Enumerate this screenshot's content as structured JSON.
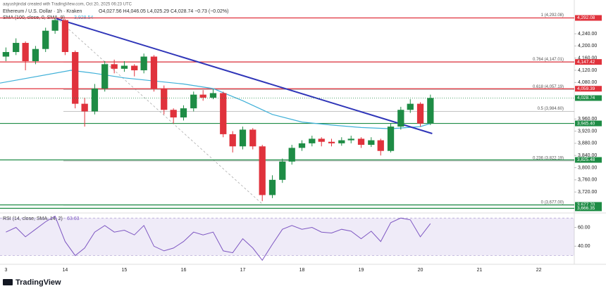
{
  "header": {
    "credit": "aayushjindal created with TradingView.com, Oct 20, 2025 06:23 UTC"
  },
  "brand": "TradingView",
  "chart_data": {
    "type": "candlestick",
    "title": "Ethereum / U.S. Dollar · 1h · Kraken",
    "ohlc_label": "O4,027.56 H4,046.05 L4,025.29 C4,028.74 −0.73 (−0.02%)",
    "x": [
      13,
      13.17,
      13.33,
      13.5,
      13.67,
      13.83,
      14,
      14.17,
      14.33,
      14.5,
      14.67,
      14.83,
      15,
      15.17,
      15.33,
      15.5,
      15.67,
      15.83,
      16,
      16.17,
      16.33,
      16.5,
      16.67,
      16.83,
      17,
      17.17,
      17.33,
      17.5,
      17.67,
      17.83,
      18,
      18.17,
      18.33,
      18.5,
      18.67,
      18.83,
      19,
      19.17,
      19.33,
      19.5,
      19.67,
      19.83,
      20,
      20.17
    ],
    "open": [
      4165,
      4180,
      4210,
      4150,
      4190,
      4250,
      4285,
      4180,
      4010,
      3985,
      4060,
      4140,
      4125,
      4135,
      4120,
      4165,
      4060,
      3990,
      3965,
      3995,
      4040,
      4030,
      4045,
      3910,
      3870,
      3925,
      3870,
      3710,
      3760,
      3820,
      3865,
      3880,
      3895,
      3885,
      3880,
      3890,
      3895,
      3875,
      3890,
      3855,
      3935,
      3990,
      4010,
      3945
    ],
    "high": [
      4195,
      4225,
      4215,
      4200,
      4260,
      4292,
      4288,
      4185,
      4030,
      4075,
      4150,
      4155,
      4150,
      4140,
      4175,
      4170,
      4070,
      3995,
      4005,
      4050,
      4055,
      4058,
      4050,
      3920,
      3935,
      3930,
      3875,
      3775,
      3830,
      3875,
      3890,
      3905,
      3900,
      3895,
      3900,
      3905,
      3900,
      3900,
      3895,
      3945,
      4000,
      4025,
      4015,
      4040
    ],
    "low": [
      4150,
      4170,
      4120,
      4140,
      4180,
      4240,
      4170,
      3995,
      3935,
      3975,
      4050,
      4110,
      4115,
      4100,
      4110,
      4050,
      3975,
      3945,
      3955,
      3985,
      4020,
      4025,
      3900,
      3850,
      3860,
      3860,
      3690,
      3700,
      3750,
      3810,
      3855,
      3870,
      3870,
      3870,
      3872,
      3880,
      3865,
      3868,
      3840,
      3850,
      3925,
      3980,
      3935,
      3940
    ],
    "close": [
      4180,
      4210,
      4150,
      4190,
      4250,
      4285,
      4180,
      4010,
      3985,
      4060,
      4140,
      4125,
      4135,
      4120,
      4165,
      4060,
      3990,
      3965,
      3995,
      4040,
      4030,
      4045,
      3910,
      3870,
      3925,
      3870,
      3710,
      3760,
      3820,
      3865,
      3880,
      3895,
      3885,
      3880,
      3890,
      3895,
      3875,
      3890,
      3855,
      3935,
      3990,
      4010,
      3945,
      4029
    ],
    "up_color": "#1e8c45",
    "down_color": "#e0323c",
    "xlim": [
      12.9,
      22.6
    ],
    "xticks": [
      {
        "value": 13,
        "label": "3"
      },
      14,
      15,
      16,
      17,
      18,
      19,
      20,
      21,
      22
    ],
    "ylim": [
      3658,
      4351
    ],
    "yticks": [
      {
        "value": 3720,
        "label": "3,720.00"
      },
      {
        "value": 3760,
        "label": "3,760.00"
      },
      {
        "value": 3800,
        "label": "3,800.00"
      },
      {
        "value": 3840,
        "label": "3,840.00"
      },
      {
        "value": 3880,
        "label": "3,880.00"
      },
      {
        "value": 3920,
        "label": "3,920.00"
      },
      {
        "value": 3960,
        "label": "3,960.00"
      },
      {
        "value": 4080,
        "label": "4,080.00"
      },
      {
        "value": 4120,
        "label": "4,120.00"
      },
      {
        "value": 4160,
        "label": "4,160.00"
      },
      {
        "value": 4200,
        "label": "4,200.00"
      },
      {
        "value": 4240,
        "label": "4,240.00"
      }
    ],
    "sma": {
      "label": "SMA (100, close, 0, SMA, 9)",
      "reading": "3,928.54",
      "color": "#3fb0d8",
      "x": [
        12.9,
        14.1,
        14.5,
        15,
        15.5,
        16,
        16.5,
        17,
        17.5,
        18,
        18.5,
        19,
        19.5,
        20,
        20.17
      ],
      "values": [
        4078,
        4120,
        4110,
        4095,
        4085,
        4075,
        4060,
        4020,
        3975,
        3950,
        3940,
        3932,
        3928,
        3935,
        3945
      ]
    },
    "trendline": {
      "color": "#2f35b8",
      "x": [
        13.85,
        20.2
      ],
      "values": [
        4290,
        3912
      ]
    },
    "fib_line": {
      "x": [
        13.85,
        17.35
      ],
      "values": [
        4292,
        3677
      ]
    },
    "fib": [
      {
        "value": 4292.08,
        "label": "1 (4,292.08)"
      },
      {
        "value": 4147.01,
        "label": "0.764 (4,147.01)"
      },
      {
        "value": 4057.19,
        "label": "0.618 (4,057.19)"
      },
      {
        "value": 3984.6,
        "label": "0.5 (3,984.60)"
      },
      {
        "value": 3822.19,
        "label": "0.236 (3,822.19)"
      },
      {
        "value": 3677,
        "label": "0 (3,677.00)"
      }
    ],
    "levels": [
      {
        "value": 4292.08,
        "label": "4,292.08",
        "color": "#e0323c"
      },
      {
        "value": 4147.42,
        "label": "4,147.42",
        "color": "#e0323c"
      },
      {
        "value": 4059.39,
        "label": "4,059.39",
        "color": "#e0323c"
      },
      {
        "value": 3945.4,
        "label": "3,945.40",
        "color": "#1e8c45"
      },
      {
        "value": 3825.48,
        "label": "3,825.48",
        "color": "#1e8c45"
      },
      {
        "value": 3677.7,
        "label": "3,677.70",
        "color": "#1e8c45"
      },
      {
        "value": 3666.35,
        "label": "3,666.35",
        "color": "#1e8c45"
      }
    ],
    "current": {
      "value": 4028.74,
      "label": "4,028.74",
      "color": "#1e8c45"
    },
    "rsi": {
      "title": "RSI (14, close, SMA, 14, 2)",
      "reading": "63.63",
      "color": "#7e57c2",
      "values": [
        55,
        60,
        50,
        58,
        66,
        72,
        45,
        30,
        38,
        55,
        62,
        55,
        57,
        52,
        62,
        40,
        35,
        38,
        45,
        55,
        52,
        55,
        35,
        33,
        48,
        38,
        25,
        42,
        58,
        62,
        58,
        60,
        55,
        54,
        58,
        56,
        48,
        56,
        45,
        65,
        70,
        68,
        50,
        64
      ],
      "ylim": [
        21.5,
        74.6
      ],
      "band": [
        30,
        70
      ],
      "yticks": [
        {
          "value": 40,
          "label": "40.00"
        },
        {
          "value": 60,
          "label": "60.00"
        }
      ]
    }
  }
}
